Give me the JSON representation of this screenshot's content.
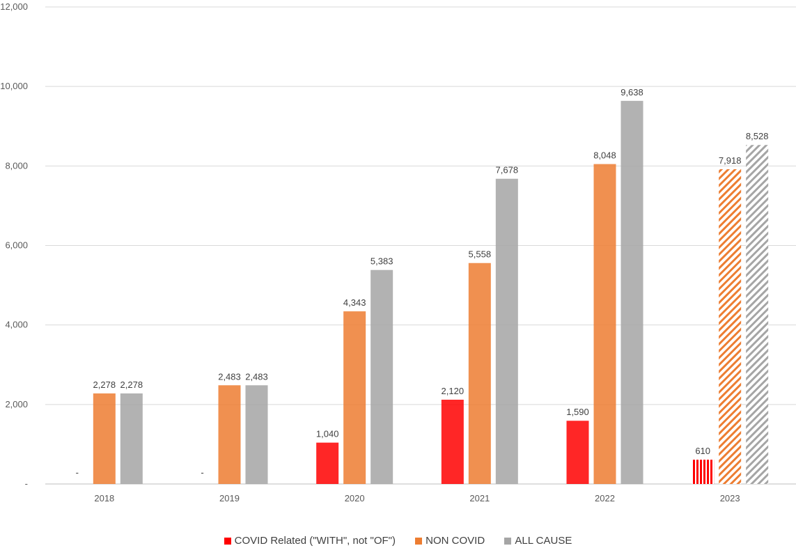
{
  "chart_data": {
    "type": "bar",
    "categories": [
      "2018",
      "2019",
      "2020",
      "2021",
      "2022",
      "2023"
    ],
    "series": [
      {
        "name": "COVID Related (\"WITH\", not \"OF\")",
        "values": [
          0,
          0,
          1040,
          2120,
          1590,
          610
        ],
        "labels": [
          "-",
          "-",
          "1,040",
          "2,120",
          "1,590",
          "610"
        ],
        "color": "#ff0000"
      },
      {
        "name": "NON COVID",
        "values": [
          2278,
          2483,
          4343,
          5558,
          8048,
          7918
        ],
        "labels": [
          "2,278",
          "2,483",
          "4,343",
          "5,558",
          "8,048",
          "7,918"
        ],
        "color": "#ed7d31"
      },
      {
        "name": "ALL CAUSE",
        "values": [
          2278,
          2483,
          5383,
          7678,
          9638,
          8528
        ],
        "labels": [
          "2,278",
          "2,483",
          "5,383",
          "7,678",
          "9,638",
          "8,528"
        ],
        "color": "#a5a5a5"
      }
    ],
    "hatched_categories": [
      "2023"
    ],
    "y_ticks": [
      0,
      2000,
      4000,
      6000,
      8000,
      10000,
      12000
    ],
    "y_tick_labels": [
      "-",
      "2,000",
      "4,000",
      "6,000",
      "8,000",
      "10,000",
      "12,000"
    ],
    "ylim": [
      0,
      12000
    ],
    "grid": true,
    "legend_position": "bottom"
  }
}
